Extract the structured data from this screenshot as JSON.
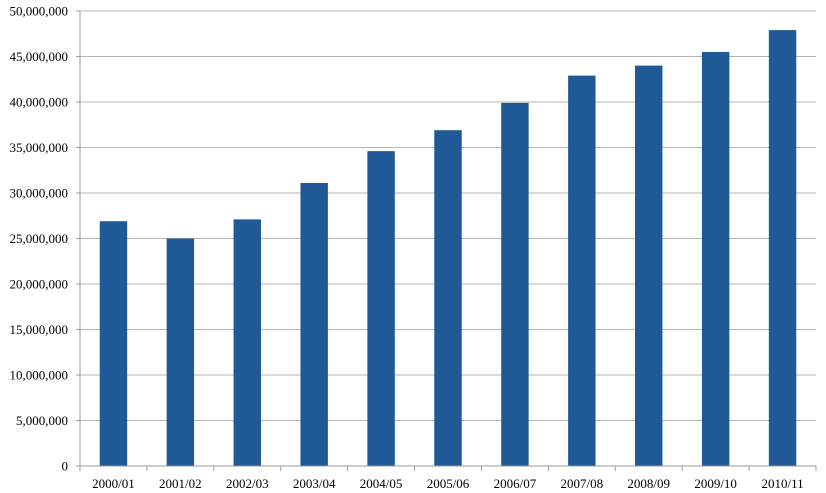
{
  "chart_data": {
    "type": "bar",
    "title": "",
    "xlabel": "",
    "ylabel": "",
    "categories": [
      "2000/01",
      "2001/02",
      "2002/03",
      "2003/04",
      "2004/05",
      "2005/06",
      "2006/07",
      "2007/08",
      "2008/09",
      "2009/10",
      "2010/11"
    ],
    "values": [
      26900000,
      25000000,
      27100000,
      31100000,
      34600000,
      36900000,
      39900000,
      42900000,
      44000000,
      45500000,
      47900000
    ],
    "ylim": [
      0,
      50000000
    ],
    "yticks": [
      0,
      5000000,
      10000000,
      15000000,
      20000000,
      25000000,
      30000000,
      35000000,
      40000000,
      45000000,
      50000000
    ],
    "ytick_labels": [
      "0",
      "5,000,000",
      "10,000,000",
      "15,000,000",
      "20,000,000",
      "25,000,000",
      "30,000,000",
      "35,000,000",
      "40,000,000",
      "45,000,000",
      "50,000,000"
    ],
    "grid": true,
    "legend": "none",
    "bar_color": "#1f5a96"
  }
}
